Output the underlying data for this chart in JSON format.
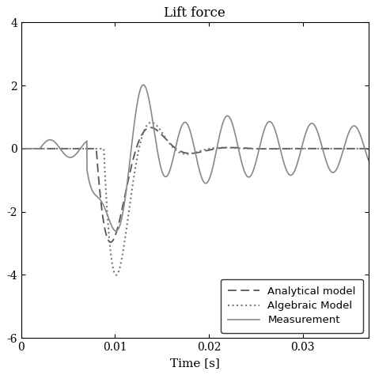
{
  "title": "Lift force",
  "xlabel": "Time [s]",
  "ylabel": "",
  "xlim": [
    0,
    0.037
  ],
  "ylim": [
    -6,
    4
  ],
  "yticks": [
    -6,
    -4,
    -2,
    0,
    2,
    4
  ],
  "xticks": [
    0,
    0.01,
    0.02,
    0.03
  ],
  "legend": [
    "Analytical model",
    "Algebraic Model",
    "Measurement"
  ],
  "color_analytical": "#555555",
  "color_algebraic": "#777777",
  "color_measurement": "#888888",
  "background_color": "#ffffff",
  "figsize": [
    4.74,
    4.74
  ],
  "dpi": 100
}
